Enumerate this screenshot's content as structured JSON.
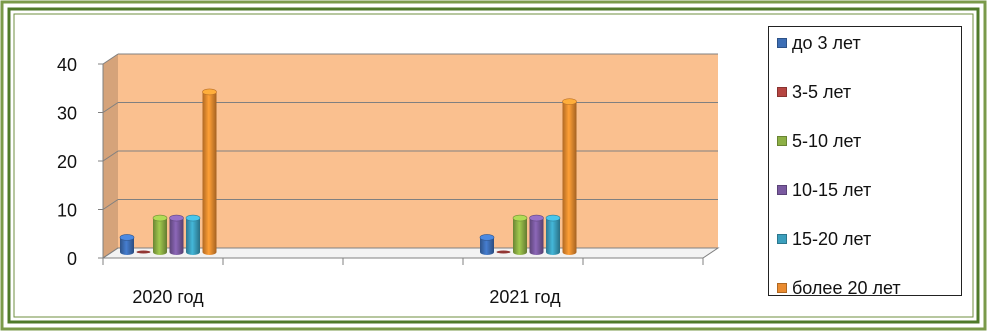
{
  "chart_data": {
    "type": "bar",
    "categories": [
      "2020 год",
      "2021 год"
    ],
    "series": [
      {
        "name": "до 3 лет",
        "values": [
          3,
          3
        ],
        "color": "#3d6eb5"
      },
      {
        "name": "3-5 лет",
        "values": [
          0,
          0
        ],
        "color": "#b64541"
      },
      {
        "name": "5-10 лет",
        "values": [
          7,
          7
        ],
        "color": "#8db045"
      },
      {
        "name": "10-15 лет",
        "values": [
          7,
          7
        ],
        "color": "#7a5aa0"
      },
      {
        "name": "15-20 лет",
        "values": [
          7,
          7
        ],
        "color": "#3b9fbd"
      },
      {
        "name": "более 20 лет",
        "values": [
          33,
          31
        ],
        "color": "#ea8b2f"
      }
    ],
    "yticks": [
      0,
      10,
      20,
      30,
      40
    ],
    "ylim": [
      0,
      40
    ],
    "grid": true,
    "legend": "right",
    "wall_color": "#fac08f"
  }
}
